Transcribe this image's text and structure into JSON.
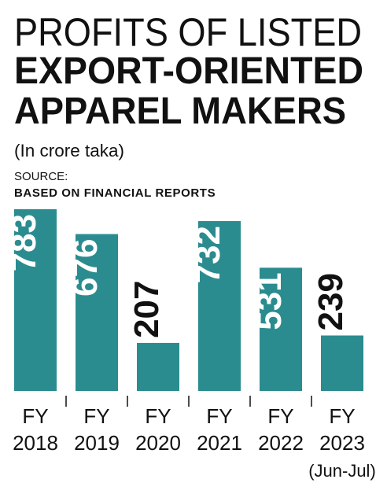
{
  "chart_data": {
    "type": "bar",
    "title": [
      "PROFITS OF LISTED",
      "EXPORT-ORIENTED",
      "APPAREL MAKERS"
    ],
    "subtitle": "(In crore taka)",
    "source_label": "SOURCE:",
    "source": "BASED ON FINANCIAL REPORTS",
    "categories": [
      [
        "FY",
        "2018"
      ],
      [
        "FY",
        "2019"
      ],
      [
        "FY",
        "2020"
      ],
      [
        "FY",
        "2021"
      ],
      [
        "FY",
        "2022"
      ],
      [
        "FY",
        "2023",
        "(Jun-Jul)"
      ]
    ],
    "values": [
      783,
      676,
      207,
      732,
      531,
      239
    ],
    "color": "#2b8c8f"
  }
}
